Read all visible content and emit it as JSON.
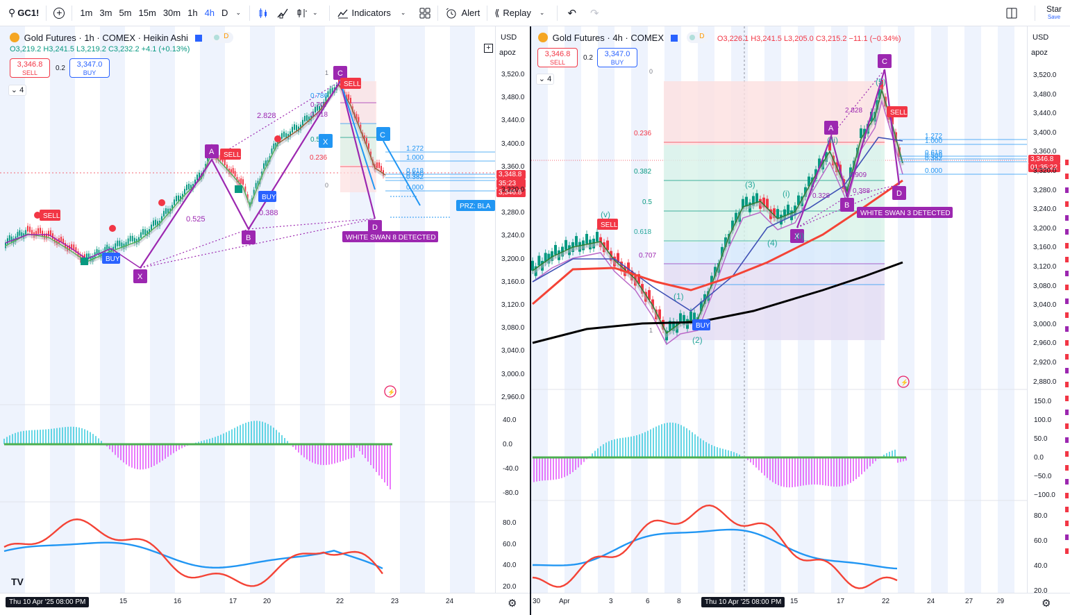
{
  "topbar": {
    "symbol": "GC1!",
    "timeframes": [
      "1m",
      "3m",
      "5m",
      "15m",
      "30m",
      "1h",
      "4h",
      "D"
    ],
    "active_timeframe": "4h",
    "indicators_label": "Indicators",
    "alert_label": "Alert",
    "replay_label": "Replay",
    "star_label": "Star",
    "save_label": "Save"
  },
  "left": {
    "title": "Gold Futures · 1h · COMEX · Heikin Ashi",
    "ohlc": {
      "o": "O3,219.2",
      "h": "H3,241.5",
      "l": "L3,219.2",
      "c": "C3,232.2",
      "chg": "+4.1 (+0.13%)"
    },
    "sell_price": "3,346.8",
    "sell_label": "SELL",
    "buy_price": "3,347.0",
    "buy_label": "BUY",
    "spread": "0.2",
    "collapse_count": "4",
    "currency": "USD",
    "indicator_short": "apoz",
    "price_ticks": [
      "3,520.0",
      "3,480.0",
      "3,440.0",
      "3,400.0",
      "3,360.0",
      "3,320.0",
      "3,280.0",
      "3,240.0",
      "3,200.0",
      "3,160.0",
      "3,120.0",
      "3,080.0",
      "3,040.0",
      "3,000.0",
      "2,960.0"
    ],
    "price_tag_top": "3,348.8",
    "price_tag_timer": "35:23",
    "price_tag_bottom": "3,346.8",
    "osc_ticks": [
      "40.0",
      "0.0",
      "-40.0",
      "-80.0"
    ],
    "rsi_ticks": [
      "80.0",
      "60.0",
      "40.0",
      "20.0"
    ],
    "time_labels": [
      "15",
      "16",
      "17",
      "20",
      "22",
      "23",
      "24"
    ],
    "time_highlight": "Thu 10 Apr '25   08:00 PM",
    "pattern_labels": {
      "x": "X",
      "a": "A",
      "b": "B",
      "c": "C",
      "d": "D"
    },
    "ratios": {
      "r1": "2.828",
      "r2": "0.525",
      "r3": "0.388"
    },
    "fib_right": [
      "1.272",
      "1.000",
      "0.618",
      "0.500",
      "0.382",
      "0.000"
    ],
    "fib_left": {
      "one": "1",
      "zero": "0",
      "r236": "0.236",
      "r786": "0.786",
      "r707": "0.707",
      "r618": "0.618",
      "r5": "0.5"
    },
    "signal_sell": "SELL",
    "signal_buy": "BUY",
    "prz_label": "PRZ: BLA",
    "swan": "WHITE SWAN 8 DETECTED"
  },
  "right": {
    "title": "Gold Futures · 4h · COMEX",
    "ohlc": {
      "o": "O3,226.1",
      "h": "H3,241.5",
      "l": "L3,205.0",
      "c": "C3,215.2",
      "chg": "−11.1 (−0.34%)"
    },
    "sell_price": "3,346.8",
    "sell_label": "SELL",
    "buy_price": "3,347.0",
    "buy_label": "BUY",
    "spread": "0.2",
    "collapse_count": "4",
    "currency": "USD",
    "indicator_short": "apoz",
    "price_ticks": [
      "3,520.0",
      "3,480.0",
      "3,440.0",
      "3,400.0",
      "3,360.0",
      "3,320.0",
      "3,280.0",
      "3,240.0",
      "3,200.0",
      "3,160.0",
      "3,120.0",
      "3,080.0",
      "3,040.0",
      "3,000.0",
      "2,960.0",
      "2,920.0",
      "2,880.0"
    ],
    "price_tag_top": "3,346.8",
    "price_tag_timer": "01:35:22",
    "osc_ticks": [
      "150.0",
      "100.0",
      "50.0",
      "0.0",
      "−50.0",
      "−100.0"
    ],
    "rsi_ticks": [
      "80.0",
      "60.0",
      "40.0",
      "20.0"
    ],
    "time_labels": [
      "30",
      "Apr",
      "3",
      "6",
      "8",
      "15",
      "17",
      "22",
      "24",
      "27",
      "29"
    ],
    "time_highlight": "Thu 10 Apr '25   08:00 PM",
    "pattern_labels": {
      "x": "X",
      "a": "A",
      "b": "B",
      "c": "C",
      "d": "D"
    },
    "ratios": {
      "r1": "2.828",
      "r2": "0.909",
      "r3": "0.328",
      "r4": "0.388"
    },
    "fib_right": [
      "1.272",
      "1.000",
      "0.618",
      "0.500",
      "0.382",
      "0.000"
    ],
    "fib_left": {
      "zero": "0",
      "one": "1",
      "r236": "0.236",
      "r382": "0.382",
      "r5": "0.5",
      "r618": "0.618",
      "r707": "0.707"
    },
    "waves": {
      "v": "(v)",
      "w1": "(1)",
      "w2": "(2)",
      "w3": "(3)",
      "w4": "(4)",
      "w5": "(5)",
      "i": "(i)",
      "ii": "(ii)",
      "iii": "(iii)"
    },
    "signal_sell": "SELL",
    "signal_buy": "BUY",
    "swan": "WHITE SWAN 3 DETECTED"
  },
  "colors": {
    "accent": "#2962ff",
    "up": "#089981",
    "down": "#f23645",
    "pattern": "#9c27b0",
    "fib_blue": "#2196f3",
    "ma_red": "#f44336",
    "ma_black": "#000000",
    "rsi_blue": "#2196f3",
    "rsi_red": "#f44336"
  }
}
